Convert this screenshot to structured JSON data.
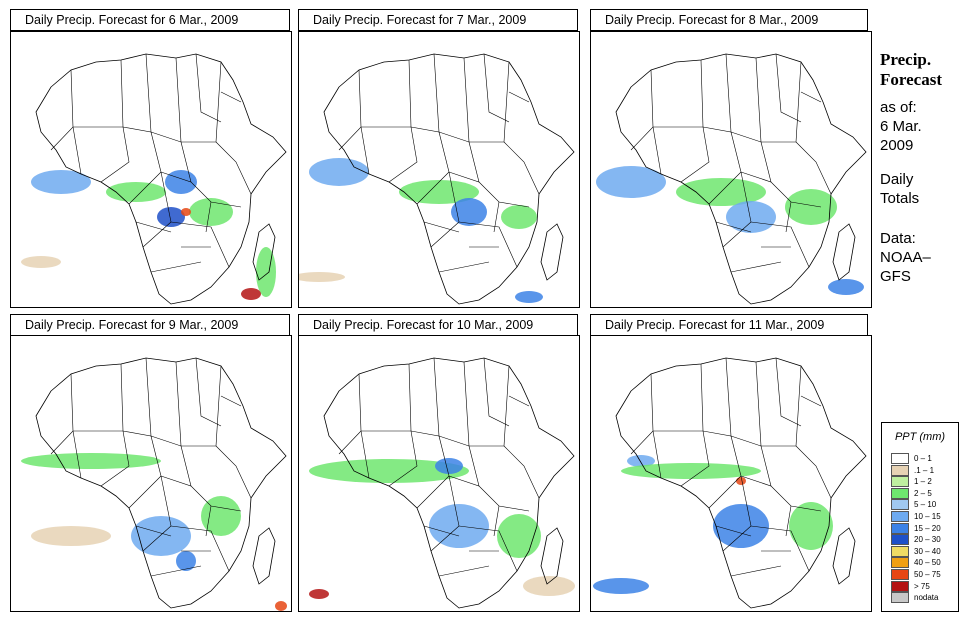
{
  "panels": [
    {
      "title": "Daily Precip. Forecast for  6 Mar., 2009"
    },
    {
      "title": "Daily Precip. Forecast for  7 Mar., 2009"
    },
    {
      "title": "Daily Precip. Forecast for  8 Mar., 2009"
    },
    {
      "title": "Daily Precip. Forecast for  9 Mar., 2009"
    },
    {
      "title": "Daily Precip. Forecast for  10 Mar., 2009"
    },
    {
      "title": "Daily Precip. Forecast for  11 Mar., 2009"
    }
  ],
  "side": {
    "title1": "Precip.",
    "title2": "Forecast",
    "asof": "as of:",
    "date1": "6 Mar.",
    "date2": "2009",
    "totals1": "Daily",
    "totals2": "Totals",
    "data1": "Data:",
    "data2": "NOAA–",
    "data3": "GFS"
  },
  "legend": {
    "title": "PPT (mm)",
    "items": [
      {
        "label": "0 – 1",
        "color": "#ffffff"
      },
      {
        "label": ".1 – 1",
        "color": "#e6d2b4"
      },
      {
        "label": "1 – 2",
        "color": "#bff0a0"
      },
      {
        "label": "2 – 5",
        "color": "#6ee66e"
      },
      {
        "label": "5 – 10",
        "color": "#a0c8f0"
      },
      {
        "label": "10 – 15",
        "color": "#6eaaf0"
      },
      {
        "label": "15 – 20",
        "color": "#3c82e6"
      },
      {
        "label": "20 – 30",
        "color": "#1e50c8"
      },
      {
        "label": "30 – 40",
        "color": "#f0dc64"
      },
      {
        "label": "40 – 50",
        "color": "#f0a014"
      },
      {
        "label": "50 – 75",
        "color": "#e64614"
      },
      {
        "label": "> 75",
        "color": "#b41414"
      },
      {
        "label": "nodata",
        "color": "#c8c8c8"
      }
    ]
  }
}
